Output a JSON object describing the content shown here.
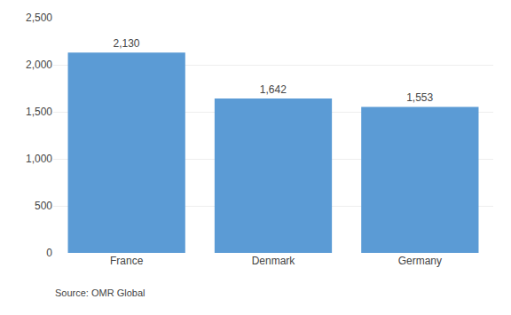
{
  "chart_data": {
    "type": "bar",
    "categories": [
      "France",
      "Denmark",
      "Germany"
    ],
    "values": [
      2130,
      1642,
      1553
    ],
    "value_labels": [
      "2,130",
      "1,642",
      "1,553"
    ],
    "data_labels": true,
    "color": "#5B9BD5",
    "ylim": [
      0,
      2500
    ],
    "yticks": [
      0,
      500,
      {
        "value": 1000,
        "label": "1,000"
      },
      {
        "value": 1500,
        "label": "1,500"
      },
      {
        "value": 2000,
        "label": "2,000"
      },
      {
        "value": 2500,
        "label": "2,500"
      }
    ],
    "grid": true,
    "annotations": [
      "Source: OMR Global"
    ]
  }
}
